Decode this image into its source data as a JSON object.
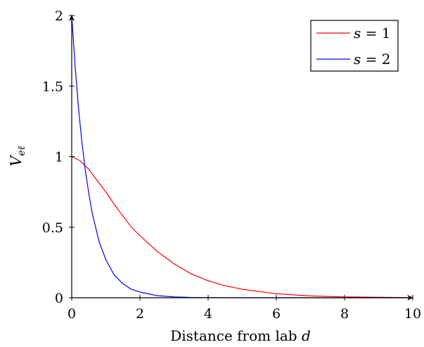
{
  "chart_data": {
    "type": "line",
    "xlabel": "Distance from lab",
    "xlabel_var": "d",
    "ylabel_base": "V",
    "ylabel_sub": "eℓ",
    "xlim": [
      0,
      10
    ],
    "ylim": [
      0,
      2
    ],
    "xticks": [
      0,
      2,
      4,
      6,
      8,
      10
    ],
    "xtick_labels": [
      "0",
      "2",
      "4",
      "6",
      "8",
      "10"
    ],
    "yticks": [
      0,
      0.5,
      1,
      1.5,
      2
    ],
    "ytick_labels": [
      "0",
      "0.5",
      "1",
      "1.5",
      "2"
    ],
    "grid": false,
    "legend_position": "top-right",
    "series": [
      {
        "name": "s = 1",
        "name_var": "s",
        "name_rest": " = 1",
        "color": "#ff0000",
        "x": [
          0,
          0.25,
          0.5,
          0.75,
          1,
          1.25,
          1.5,
          1.75,
          2,
          2.5,
          3,
          3.5,
          4,
          4.5,
          5,
          6,
          7,
          8,
          9,
          10
        ],
        "y": [
          1.0,
          0.97,
          0.91,
          0.83,
          0.75,
          0.66,
          0.58,
          0.5,
          0.44,
          0.33,
          0.24,
          0.17,
          0.12,
          0.085,
          0.06,
          0.028,
          0.013,
          0.006,
          0.003,
          0.001
        ]
      },
      {
        "name": "s = 2",
        "name_var": "s",
        "name_rest": " = 2",
        "color": "#0000ff",
        "x": [
          0,
          0.1,
          0.2,
          0.3,
          0.4,
          0.5,
          0.6,
          0.8,
          1,
          1.25,
          1.5,
          1.75,
          2,
          2.5,
          3,
          3.5,
          4,
          5,
          6,
          8,
          10
        ],
        "y": [
          2.0,
          1.64,
          1.34,
          1.1,
          0.9,
          0.74,
          0.6,
          0.4,
          0.27,
          0.16,
          0.1,
          0.06,
          0.04,
          0.015,
          0.006,
          0.002,
          0.001,
          0.0,
          0.0,
          0.0,
          0.0
        ]
      }
    ]
  }
}
